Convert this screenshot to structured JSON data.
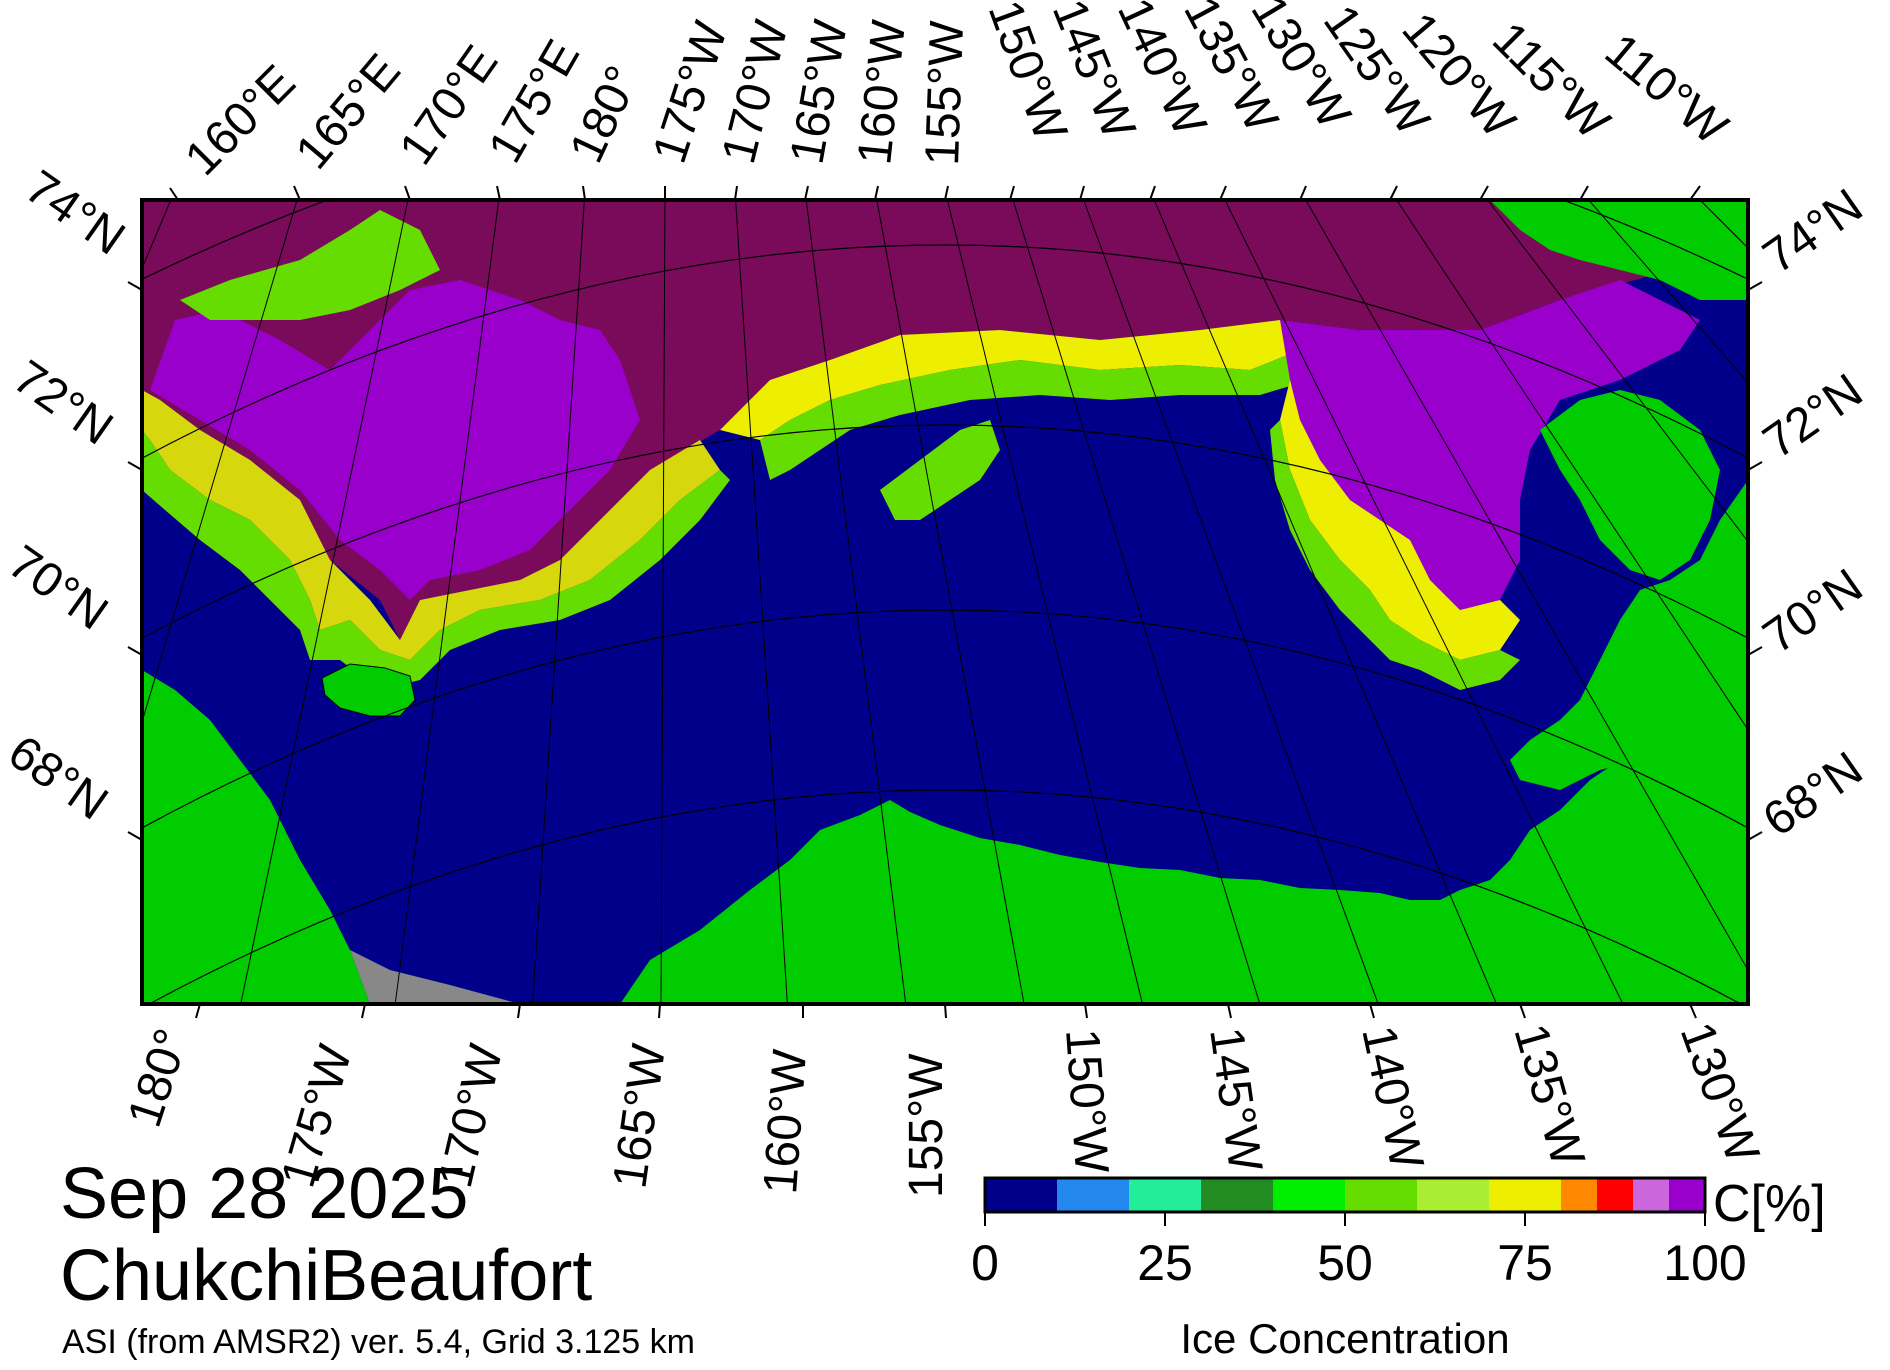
{
  "date": "Sep 28 2025",
  "region": "ChukchiBeaufort",
  "source": "ASI (from AMSR2) ver. 5.4,  Grid 3.125 km",
  "colorbar": {
    "title": "Ice Concentration",
    "unit": "C[%]",
    "tick_labels": [
      "0",
      "25",
      "50",
      "75",
      "100"
    ],
    "bins": [
      {
        "from": 0,
        "to": 10,
        "color": "#00008b"
      },
      {
        "from": 10,
        "to": 20,
        "color": "#2288ee"
      },
      {
        "from": 20,
        "to": 30,
        "color": "#22ee99"
      },
      {
        "from": 30,
        "to": 40,
        "color": "#228b22"
      },
      {
        "from": 40,
        "to": 50,
        "color": "#00ee00"
      },
      {
        "from": 50,
        "to": 60,
        "color": "#66dd00"
      },
      {
        "from": 60,
        "to": 70,
        "color": "#aaee33"
      },
      {
        "from": 70,
        "to": 80,
        "color": "#eeee00"
      },
      {
        "from": 80,
        "to": 85,
        "color": "#ff8800"
      },
      {
        "from": 85,
        "to": 90,
        "color": "#ff0000"
      },
      {
        "from": 90,
        "to": 95,
        "color": "#cc66dd"
      },
      {
        "from": 95,
        "to": 100,
        "color": "#9900cc"
      }
    ]
  },
  "map": {
    "top_longitude_labels": [
      "160°E",
      "165°E",
      "170°E",
      "175°E",
      "180°",
      "175°W",
      "170°W",
      "165°W",
      "160°W",
      "155°W",
      "150°W",
      "145°W",
      "140°W",
      "135°W",
      "130°W",
      "125°W",
      "120°W",
      "115°W",
      "110°W"
    ],
    "bottom_longitude_labels": [
      "180°",
      "175°W",
      "170°W",
      "165°W",
      "160°W",
      "155°W",
      "150°W",
      "145°W",
      "140°W",
      "135°W",
      "130°W"
    ],
    "left_latitude_labels": [
      "74°N",
      "72°N",
      "70°N",
      "68°N"
    ],
    "right_latitude_labels": [
      "74°N",
      "72°N",
      "70°N",
      "68°N"
    ],
    "colors": {
      "open_water": "#00008b",
      "land": "#00cc00",
      "no_data": "#888888",
      "dense_ice": "#7a0a5a",
      "high_ice": "#9900cc",
      "grid_line": "#000000"
    }
  }
}
